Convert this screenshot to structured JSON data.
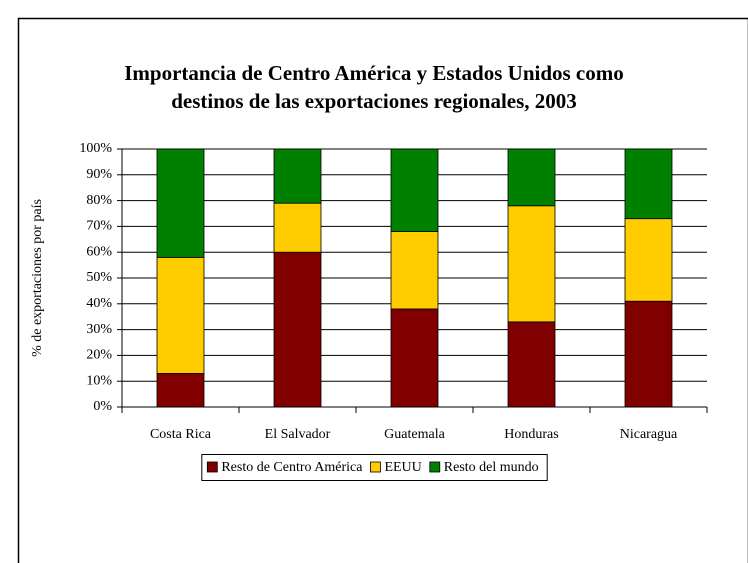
{
  "chart_data": {
    "type": "stacked_bar",
    "title": [
      "Importancia de Centro América y Estados Unidos como",
      "destinos de las exportaciones regionales, 2003"
    ],
    "y_label": "% de exportaciones por país",
    "categories": [
      "Costa Rica",
      "El Salvador",
      "Guatemala",
      "Honduras",
      "Nicaragua"
    ],
    "series": [
      {
        "name": "Resto de Centro América",
        "color": "#800000",
        "values": [
          13,
          60,
          38,
          33,
          41
        ]
      },
      {
        "name": "EEUU",
        "color": "#ffcc00",
        "values": [
          45,
          19,
          30,
          45,
          32
        ]
      },
      {
        "name": "Resto del mundo",
        "color": "#008000",
        "values": [
          42,
          21,
          32,
          22,
          27
        ]
      }
    ],
    "ylim": [
      0,
      100
    ],
    "yticks": [
      {
        "value": 0,
        "label": "0%"
      },
      {
        "value": 10,
        "label": "10%"
      },
      {
        "value": 20,
        "label": "20%"
      },
      {
        "value": 30,
        "label": "30%"
      },
      {
        "value": 40,
        "label": "40%"
      },
      {
        "value": 50,
        "label": "50%"
      },
      {
        "value": 60,
        "label": "60%"
      },
      {
        "value": 70,
        "label": "70%"
      },
      {
        "value": 80,
        "label": "80%"
      },
      {
        "value": 90,
        "label": "90%"
      },
      {
        "value": 100,
        "label": "100%"
      }
    ],
    "grid": true,
    "legend": "bottom"
  }
}
